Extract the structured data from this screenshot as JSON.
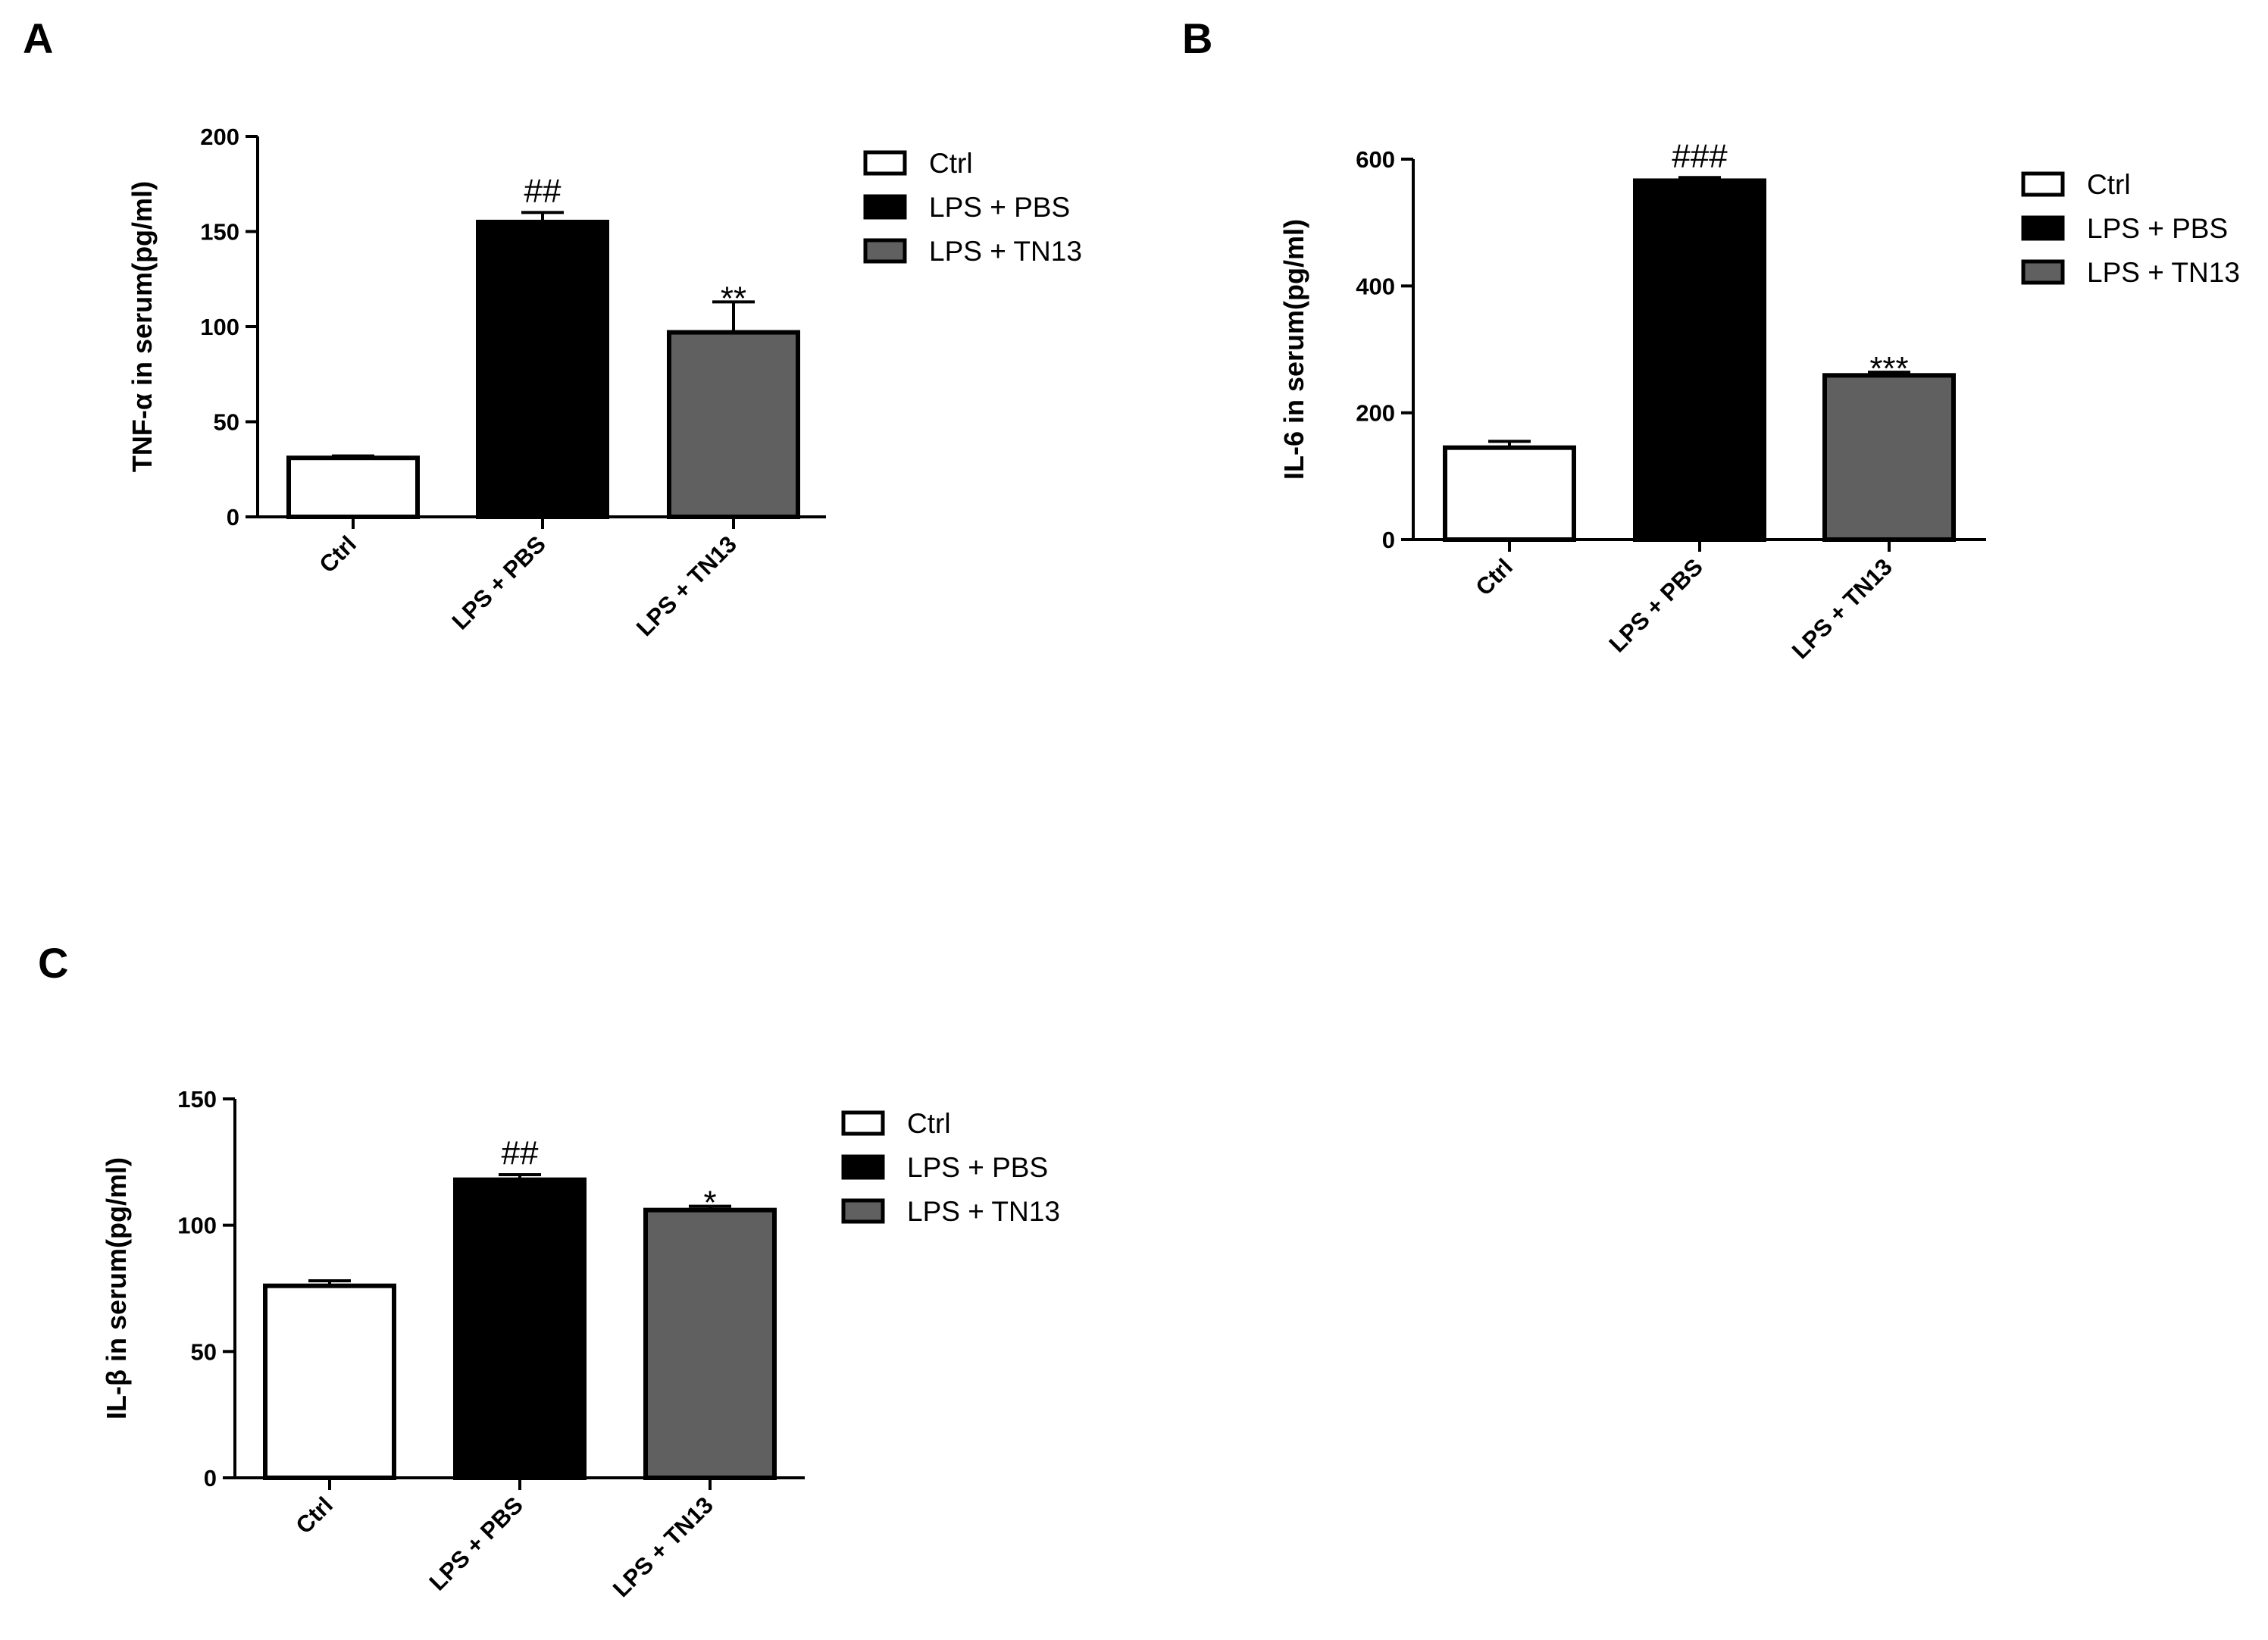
{
  "chart_data": [
    {
      "type": "bar",
      "panel": "A",
      "ylabel": "TNF-α in serum(pg/ml)",
      "xlabel": "",
      "categories": [
        "Ctrl",
        "LPS + PBS",
        "LPS + TN13"
      ],
      "values": [
        31,
        155,
        97
      ],
      "errors": [
        1,
        5,
        16
      ],
      "annotations": [
        "",
        "##",
        "**"
      ],
      "ylim": [
        0,
        200
      ],
      "yticks": [
        0,
        50,
        100,
        150,
        200
      ],
      "colors": [
        "#ffffff",
        "#000000",
        "#606060"
      ],
      "legend": [
        "Ctrl",
        "LPS + PBS",
        "LPS + TN13"
      ]
    },
    {
      "type": "bar",
      "panel": "B",
      "ylabel": "IL-6 in serum(pg/ml)",
      "xlabel": "",
      "categories": [
        "Ctrl",
        "LPS + PBS",
        "LPS + TN13"
      ],
      "values": [
        145,
        566,
        259
      ],
      "errors": [
        10,
        5,
        5
      ],
      "annotations": [
        "",
        "###",
        "***"
      ],
      "ylim": [
        0,
        600
      ],
      "yticks": [
        0,
        200,
        400,
        600
      ],
      "colors": [
        "#ffffff",
        "#000000",
        "#606060"
      ],
      "legend": [
        "Ctrl",
        "LPS + PBS",
        "LPS + TN13"
      ]
    },
    {
      "type": "bar",
      "panel": "C",
      "ylabel": "IL-β in serum(pg/ml)",
      "xlabel": "",
      "categories": [
        "Ctrl",
        "LPS + PBS",
        "LPS + TN13"
      ],
      "values": [
        76,
        118,
        106
      ],
      "errors": [
        2,
        2,
        1.5
      ],
      "annotations": [
        "",
        "##",
        "*"
      ],
      "ylim": [
        0,
        150
      ],
      "yticks": [
        0,
        50,
        100,
        150
      ],
      "colors": [
        "#ffffff",
        "#000000",
        "#606060"
      ],
      "legend": [
        "Ctrl",
        "LPS + PBS",
        "LPS + TN13"
      ]
    }
  ]
}
